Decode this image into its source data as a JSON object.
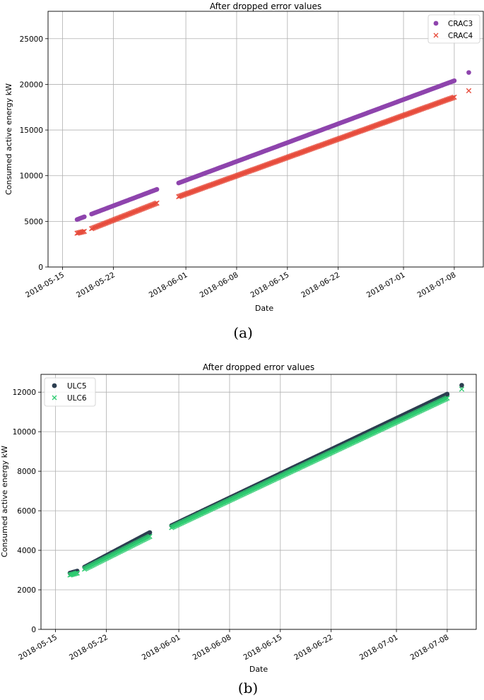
{
  "chart_data": [
    {
      "type": "scatter",
      "title": "After dropped error values",
      "xlabel": "Date",
      "ylabel": "Consumed active energy kW",
      "caption": "(a)",
      "x_ticks": [
        "2018-05-15",
        "2018-05-22",
        "2018-06-01",
        "2018-06-08",
        "2018-06-15",
        "2018-06-22",
        "2018-07-01",
        "2018-07-08"
      ],
      "x_range": [
        "2018-05-13",
        "2018-07-12"
      ],
      "ylim": [
        0,
        28000
      ],
      "y_ticks": [
        0,
        5000,
        10000,
        15000,
        20000,
        25000
      ],
      "grid": true,
      "legend_position": "top-right",
      "series": [
        {
          "name": "CRAC3",
          "marker": "circle",
          "color": "#8e44ad",
          "segments": [
            {
              "start": "2018-05-17",
              "end": "2018-05-18",
              "y_start": 5200,
              "y_end": 5500
            },
            {
              "start": "2018-05-19",
              "end": "2018-05-28",
              "y_start": 5800,
              "y_end": 8500
            },
            {
              "start": "2018-05-31",
              "end": "2018-07-08",
              "y_start": 9200,
              "y_end": 20400
            }
          ],
          "points": [
            {
              "x": "2018-07-10",
              "y": 21300
            }
          ]
        },
        {
          "name": "CRAC4",
          "marker": "x",
          "color": "#e74c3c",
          "segments": [
            {
              "start": "2018-05-17",
              "end": "2018-05-18",
              "y_start": 3700,
              "y_end": 3900
            },
            {
              "start": "2018-05-19",
              "end": "2018-05-28",
              "y_start": 4200,
              "y_end": 7000
            },
            {
              "start": "2018-05-31",
              "end": "2018-07-08",
              "y_start": 7700,
              "y_end": 18600
            }
          ],
          "points": [
            {
              "x": "2018-07-10",
              "y": 19300
            }
          ]
        }
      ]
    },
    {
      "type": "scatter",
      "title": "After dropped error values",
      "xlabel": "Date",
      "ylabel": "Consumed active energy kW",
      "caption": "(b)",
      "x_ticks": [
        "2018-05-15",
        "2018-05-22",
        "2018-06-01",
        "2018-06-08",
        "2018-06-15",
        "2018-06-22",
        "2018-07-01",
        "2018-07-08"
      ],
      "x_range": [
        "2018-05-13",
        "2018-07-12"
      ],
      "ylim": [
        0,
        12900
      ],
      "y_ticks": [
        0,
        2000,
        4000,
        6000,
        8000,
        10000,
        12000
      ],
      "grid": true,
      "legend_position": "top-left",
      "series": [
        {
          "name": "ULC5",
          "marker": "circle",
          "color": "#2c3e50",
          "segments": [
            {
              "start": "2018-05-17",
              "end": "2018-05-18",
              "y_start": 2850,
              "y_end": 2950
            },
            {
              "start": "2018-05-19",
              "end": "2018-05-28",
              "y_start": 3150,
              "y_end": 4900
            },
            {
              "start": "2018-05-31",
              "end": "2018-07-08",
              "y_start": 5250,
              "y_end": 11900
            }
          ],
          "points": [
            {
              "x": "2018-07-10",
              "y": 12350
            }
          ]
        },
        {
          "name": "ULC6",
          "marker": "x",
          "color": "#2ecc71",
          "segments": [
            {
              "start": "2018-05-17",
              "end": "2018-05-18",
              "y_start": 2750,
              "y_end": 2850
            },
            {
              "start": "2018-05-19",
              "end": "2018-05-28",
              "y_start": 3050,
              "y_end": 4700
            },
            {
              "start": "2018-05-31",
              "end": "2018-07-08",
              "y_start": 5150,
              "y_end": 11700
            }
          ],
          "points": [
            {
              "x": "2018-07-10",
              "y": 12150
            }
          ]
        }
      ]
    }
  ]
}
